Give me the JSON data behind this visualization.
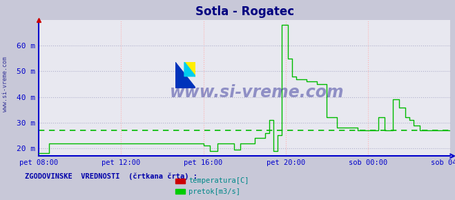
{
  "title": "Sotla - Rogatec",
  "bg_color": "#c8c8d8",
  "plot_bg_color": "#e8e8f0",
  "title_color": "#000080",
  "axis_color": "#0000cc",
  "ylabel_color": "#0000cc",
  "xlabel_color": "#0000cc",
  "grid_color_h": "#b0b0cc",
  "grid_color_v": "#ffb0b0",
  "ylim": [
    17,
    70
  ],
  "ylim_display": [
    17,
    68
  ],
  "yticks": [
    20,
    30,
    40,
    50,
    60
  ],
  "ytick_labels": [
    "20 m",
    "30 m",
    "40 m",
    "50 m",
    "60 m"
  ],
  "xtick_labels": [
    "pet 08:00",
    "pet 12:00",
    "pet 16:00",
    "pet 20:00",
    "sob 00:00",
    "sob 04:00"
  ],
  "xtick_positions": [
    0,
    4,
    8,
    12,
    16,
    20
  ],
  "total_hours": 20,
  "legend_text": "ZGODOVINSKE  VREDNOSTI  (črtkana črta) :",
  "legend_items": [
    "temperatura[C]",
    "pretok[m3/s]"
  ],
  "legend_colors": [
    "#cc0000",
    "#00cc00"
  ],
  "watermark": "www.si-vreme.com",
  "watermark_color": "#000080",
  "side_text": "www.si-vreme.com",
  "flow_color": "#00bb00",
  "temp_color": "#cc0000",
  "hist_flow_value": 27.0,
  "flow_data": [
    [
      0.0,
      18
    ],
    [
      0.5,
      18
    ],
    [
      0.5,
      22
    ],
    [
      8.0,
      22
    ],
    [
      8.0,
      21
    ],
    [
      8.3,
      21
    ],
    [
      8.3,
      19
    ],
    [
      8.7,
      19
    ],
    [
      8.7,
      22
    ],
    [
      9.5,
      22
    ],
    [
      9.5,
      19.5
    ],
    [
      9.8,
      19.5
    ],
    [
      9.8,
      22
    ],
    [
      10.5,
      22
    ],
    [
      10.5,
      24
    ],
    [
      11.0,
      24
    ],
    [
      11.0,
      26
    ],
    [
      11.2,
      26
    ],
    [
      11.2,
      31
    ],
    [
      11.4,
      31
    ],
    [
      11.4,
      19
    ],
    [
      11.6,
      19
    ],
    [
      11.6,
      25
    ],
    [
      11.8,
      25
    ],
    [
      11.8,
      68
    ],
    [
      12.1,
      68
    ],
    [
      12.1,
      55
    ],
    [
      12.3,
      55
    ],
    [
      12.3,
      48
    ],
    [
      12.5,
      48
    ],
    [
      12.5,
      47
    ],
    [
      13.0,
      47
    ],
    [
      13.0,
      46
    ],
    [
      13.5,
      46
    ],
    [
      13.5,
      45
    ],
    [
      14.0,
      45
    ],
    [
      14.0,
      32
    ],
    [
      14.5,
      32
    ],
    [
      14.5,
      28
    ],
    [
      15.5,
      28
    ],
    [
      15.5,
      27
    ],
    [
      16.5,
      27
    ],
    [
      16.5,
      32
    ],
    [
      16.8,
      32
    ],
    [
      16.8,
      27
    ],
    [
      17.2,
      27
    ],
    [
      17.2,
      39
    ],
    [
      17.5,
      39
    ],
    [
      17.5,
      36
    ],
    [
      17.8,
      36
    ],
    [
      17.8,
      32
    ],
    [
      18.0,
      32
    ],
    [
      18.0,
      31
    ],
    [
      18.2,
      31
    ],
    [
      18.2,
      29
    ],
    [
      18.5,
      29
    ],
    [
      18.5,
      27
    ],
    [
      20.0,
      27
    ]
  ]
}
